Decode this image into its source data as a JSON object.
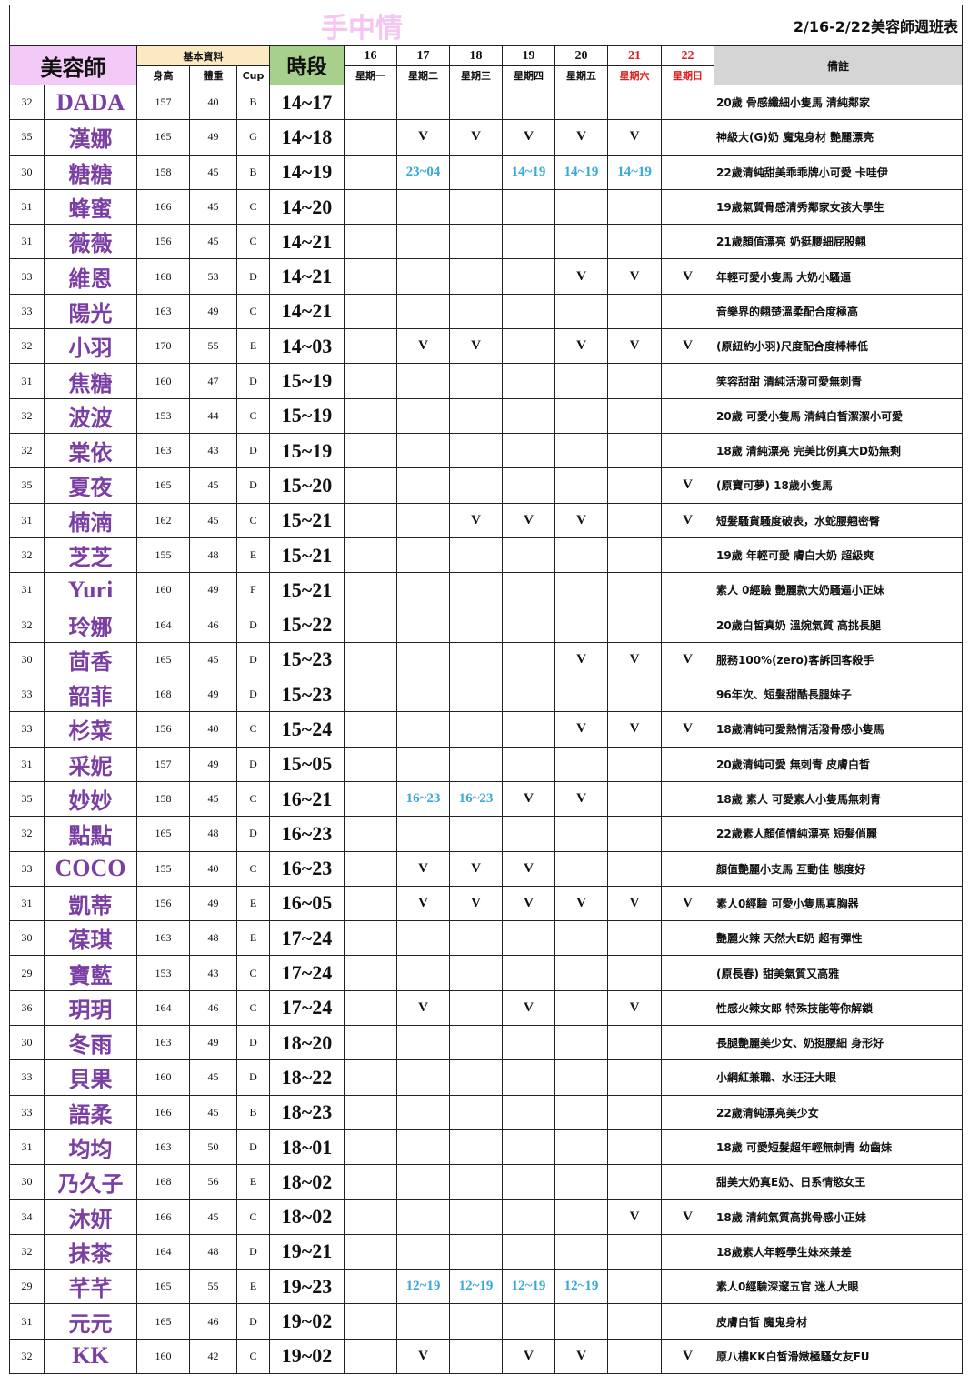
{
  "title": "手中情",
  "week_title": "2/16-2/22美容師週班表",
  "headers": {
    "name": "美容師",
    "basic": "基本資料",
    "height": "身高",
    "weight": "體重",
    "cup": "Cup",
    "time": "時段",
    "note": "備註"
  },
  "days": [
    {
      "date": "16",
      "weekday": "星期一"
    },
    {
      "date": "17",
      "weekday": "星期二"
    },
    {
      "date": "18",
      "weekday": "星期三"
    },
    {
      "date": "19",
      "weekday": "星期四"
    },
    {
      "date": "20",
      "weekday": "星期五"
    },
    {
      "date": "21",
      "weekday": "星期六",
      "weekend": true
    },
    {
      "date": "22",
      "weekday": "星期日",
      "weekend": true
    }
  ],
  "colors": {
    "name": "#7b3fa3",
    "weekend": "#e02020",
    "shift_time": "#36a9d9",
    "name_header": "#f3c9f7",
    "basic_header": "#fbe9c2",
    "time_header": "#a8d08d",
    "note_header": "#d5d5d5"
  },
  "rows": [
    {
      "age": "32",
      "name": "DADA",
      "h": "157",
      "w": "40",
      "cup": "B",
      "time": "14~17",
      "days": [
        "",
        "",
        "",
        "",
        "",
        "",
        ""
      ],
      "note": "20歲 骨感纖細小隻馬 清純鄰家"
    },
    {
      "age": "35",
      "name": "漢娜",
      "h": "165",
      "w": "49",
      "cup": "G",
      "time": "14~18",
      "days": [
        "",
        "V",
        "V",
        "V",
        "V",
        "V",
        ""
      ],
      "note": "神級大(G)奶 魔鬼身材 艷麗漂亮"
    },
    {
      "age": "30",
      "name": "糖糖",
      "h": "158",
      "w": "45",
      "cup": "B",
      "time": "14~19",
      "days": [
        "",
        "23~04",
        "",
        "14~19",
        "14~19",
        "14~19",
        ""
      ],
      "note": "22歲清純甜美乖乖牌小可愛 卡哇伊"
    },
    {
      "age": "31",
      "name": "蜂蜜",
      "h": "166",
      "w": "45",
      "cup": "C",
      "time": "14~20",
      "days": [
        "",
        "",
        "",
        "",
        "",
        "",
        ""
      ],
      "note": "19歲氣質骨感清秀鄰家女孩大學生"
    },
    {
      "age": "31",
      "name": "薇薇",
      "h": "156",
      "w": "45",
      "cup": "C",
      "time": "14~21",
      "days": [
        "",
        "",
        "",
        "",
        "",
        "",
        ""
      ],
      "note": "21歲顏值漂亮 奶挺腰細屁股翹"
    },
    {
      "age": "33",
      "name": "維恩",
      "h": "168",
      "w": "53",
      "cup": "D",
      "time": "14~21",
      "days": [
        "",
        "",
        "",
        "",
        "V",
        "V",
        "V"
      ],
      "note": "年輕可愛小隻馬 大奶小騷逼"
    },
    {
      "age": "33",
      "name": "陽光",
      "h": "163",
      "w": "49",
      "cup": "C",
      "time": "14~21",
      "days": [
        "",
        "",
        "",
        "",
        "",
        "",
        ""
      ],
      "note": "音樂界的翹楚溫柔配合度極高"
    },
    {
      "age": "32",
      "name": "小羽",
      "h": "170",
      "w": "55",
      "cup": "E",
      "time": "14~03",
      "days": [
        "",
        "V",
        "V",
        "",
        "V",
        "V",
        "V"
      ],
      "note": "(原紐約小羽)尺度配合度棒棒低"
    },
    {
      "age": "31",
      "name": "焦糖",
      "h": "160",
      "w": "47",
      "cup": "D",
      "time": "15~19",
      "days": [
        "",
        "",
        "",
        "",
        "",
        "",
        ""
      ],
      "note": "笑容甜甜 清純活潑可愛無刺青"
    },
    {
      "age": "32",
      "name": "波波",
      "h": "153",
      "w": "44",
      "cup": "C",
      "time": "15~19",
      "days": [
        "",
        "",
        "",
        "",
        "",
        "",
        ""
      ],
      "note": "20歲 可愛小隻馬 清純白皙潔潔小可愛"
    },
    {
      "age": "32",
      "name": "棠依",
      "h": "163",
      "w": "43",
      "cup": "D",
      "time": "15~19",
      "days": [
        "",
        "",
        "",
        "",
        "",
        "",
        ""
      ],
      "note": "18歲 清純漂亮 完美比例真大D奶無剩"
    },
    {
      "age": "35",
      "name": "夏夜",
      "h": "165",
      "w": "45",
      "cup": "D",
      "time": "15~20",
      "days": [
        "",
        "",
        "",
        "",
        "",
        "",
        "V"
      ],
      "note": "(原寶可夢) 18歲小隻馬"
    },
    {
      "age": "31",
      "name": "楠湳",
      "h": "162",
      "w": "45",
      "cup": "C",
      "time": "15~21",
      "days": [
        "",
        "",
        "V",
        "V",
        "V",
        "",
        "V"
      ],
      "note": "短髮騷貨騷度破表，水蛇腰翹密臀"
    },
    {
      "age": "32",
      "name": "芝芝",
      "h": "155",
      "w": "48",
      "cup": "E",
      "time": "15~21",
      "days": [
        "",
        "",
        "",
        "",
        "",
        "",
        ""
      ],
      "note": "19歲 年輕可愛 膚白大奶 超級爽"
    },
    {
      "age": "31",
      "name": "Yuri",
      "h": "160",
      "w": "49",
      "cup": "F",
      "time": "15~21",
      "days": [
        "",
        "",
        "",
        "",
        "",
        "",
        ""
      ],
      "note": "素人 0經驗 艷麗款大奶騷逼小正妹"
    },
    {
      "age": "32",
      "name": "玲娜",
      "h": "164",
      "w": "46",
      "cup": "D",
      "time": "15~22",
      "days": [
        "",
        "",
        "",
        "",
        "",
        "",
        ""
      ],
      "note": "20歲白皙真奶 溫婉氣質 高挑長腿"
    },
    {
      "age": "30",
      "name": "茴香",
      "h": "165",
      "w": "45",
      "cup": "D",
      "time": "15~23",
      "days": [
        "",
        "",
        "",
        "",
        "V",
        "V",
        "V"
      ],
      "note": "服務100%(zero)客訴回客殺手"
    },
    {
      "age": "33",
      "name": "韶菲",
      "h": "168",
      "w": "49",
      "cup": "D",
      "time": "15~23",
      "days": [
        "",
        "",
        "",
        "",
        "",
        "",
        ""
      ],
      "note": "96年次、短髮甜酷長腿妹子"
    },
    {
      "age": "33",
      "name": "杉菜",
      "h": "156",
      "w": "40",
      "cup": "C",
      "time": "15~24",
      "days": [
        "",
        "",
        "",
        "",
        "V",
        "V",
        "V"
      ],
      "note": "18歲清純可愛熱情活潑骨感小隻馬"
    },
    {
      "age": "31",
      "name": "采妮",
      "h": "157",
      "w": "49",
      "cup": "D",
      "time": "15~05",
      "days": [
        "",
        "",
        "",
        "",
        "",
        "",
        ""
      ],
      "note": "20歲清純可愛 無刺青 皮膚白皙"
    },
    {
      "age": "35",
      "name": "妙妙",
      "h": "158",
      "w": "45",
      "cup": "C",
      "time": "16~21",
      "days": [
        "",
        "16~23",
        "16~23",
        "V",
        "V",
        "",
        ""
      ],
      "note": "18歲 素人 可愛素人小隻馬無刺青"
    },
    {
      "age": "32",
      "name": "點點",
      "h": "165",
      "w": "48",
      "cup": "D",
      "time": "16~23",
      "days": [
        "",
        "",
        "",
        "",
        "",
        "",
        ""
      ],
      "note": "22歲素人顏值情純漂亮 短髮俏麗"
    },
    {
      "age": "33",
      "name": "COCO",
      "h": "155",
      "w": "40",
      "cup": "C",
      "time": "16~23",
      "days": [
        "",
        "V",
        "V",
        "V",
        "",
        "",
        ""
      ],
      "note": "顏值艷麗小支馬 互動佳 態度好"
    },
    {
      "age": "31",
      "name": "凱蒂",
      "h": "156",
      "w": "49",
      "cup": "E",
      "time": "16~05",
      "days": [
        "",
        "V",
        "V",
        "V",
        "V",
        "V",
        "V"
      ],
      "note": "素人0經驗 可愛小隻馬真胸器"
    },
    {
      "age": "30",
      "name": "葆琪",
      "h": "163",
      "w": "48",
      "cup": "E",
      "time": "17~24",
      "days": [
        "",
        "",
        "",
        "",
        "",
        "",
        ""
      ],
      "note": "艷麗火辣 天然大E奶 超有彈性"
    },
    {
      "age": "29",
      "name": "寶藍",
      "h": "153",
      "w": "43",
      "cup": "C",
      "time": "17~24",
      "days": [
        "",
        "",
        "",
        "",
        "",
        "",
        ""
      ],
      "note": "(原長春) 甜美氣質又高雅"
    },
    {
      "age": "36",
      "name": "玥玥",
      "h": "164",
      "w": "46",
      "cup": "C",
      "time": "17~24",
      "days": [
        "",
        "V",
        "",
        "V",
        "",
        "V",
        ""
      ],
      "note": "性感火辣女郎 特殊技能等你解鎖"
    },
    {
      "age": "30",
      "name": "冬雨",
      "h": "163",
      "w": "49",
      "cup": "D",
      "time": "18~20",
      "days": [
        "",
        "",
        "",
        "",
        "",
        "",
        ""
      ],
      "note": "長腿艷麗美少女、奶挺腰細 身形好"
    },
    {
      "age": "33",
      "name": "貝果",
      "h": "160",
      "w": "45",
      "cup": "D",
      "time": "18~22",
      "days": [
        "",
        "",
        "",
        "",
        "",
        "",
        ""
      ],
      "note": "小網紅兼職、水汪汪大眼"
    },
    {
      "age": "33",
      "name": "語柔",
      "h": "166",
      "w": "45",
      "cup": "B",
      "time": "18~23",
      "days": [
        "",
        "",
        "",
        "",
        "",
        "",
        ""
      ],
      "note": "22歲清純漂亮美少女"
    },
    {
      "age": "31",
      "name": "均均",
      "h": "163",
      "w": "50",
      "cup": "D",
      "time": "18~01",
      "days": [
        "",
        "",
        "",
        "",
        "",
        "",
        ""
      ],
      "note": "18歲 可愛短髮超年輕無刺青 幼齒妹"
    },
    {
      "age": "30",
      "name": "乃久子",
      "h": "168",
      "w": "56",
      "cup": "E",
      "time": "18~02",
      "days": [
        "",
        "",
        "",
        "",
        "",
        "",
        ""
      ],
      "note": "甜美大奶真E奶、日系情慾女王"
    },
    {
      "age": "34",
      "name": "沐妍",
      "h": "166",
      "w": "45",
      "cup": "C",
      "time": "18~02",
      "days": [
        "",
        "",
        "",
        "",
        "",
        "V",
        "V"
      ],
      "note": "18歲 清純氣質高挑骨感小正妹"
    },
    {
      "age": "32",
      "name": "抹茶",
      "h": "164",
      "w": "48",
      "cup": "D",
      "time": "19~21",
      "days": [
        "",
        "",
        "",
        "",
        "",
        "",
        ""
      ],
      "note": "18歲素人年輕學生妹來兼差"
    },
    {
      "age": "29",
      "name": "芊芊",
      "h": "165",
      "w": "55",
      "cup": "E",
      "time": "19~23",
      "days": [
        "",
        "12~19",
        "12~19",
        "12~19",
        "12~19",
        "",
        ""
      ],
      "note": "素人0經驗深邃五官 迷人大眼"
    },
    {
      "age": "31",
      "name": "元元",
      "h": "165",
      "w": "46",
      "cup": "D",
      "time": "19~02",
      "days": [
        "",
        "",
        "",
        "",
        "",
        "",
        ""
      ],
      "note": "皮膚白皙 魔鬼身材"
    },
    {
      "age": "32",
      "name": "KK",
      "h": "160",
      "w": "42",
      "cup": "C",
      "time": "19~02",
      "days": [
        "",
        "V",
        "",
        "V",
        "V",
        "",
        "V"
      ],
      "note": "原八樓KK白皙滑嫩極騷女友FU"
    }
  ]
}
